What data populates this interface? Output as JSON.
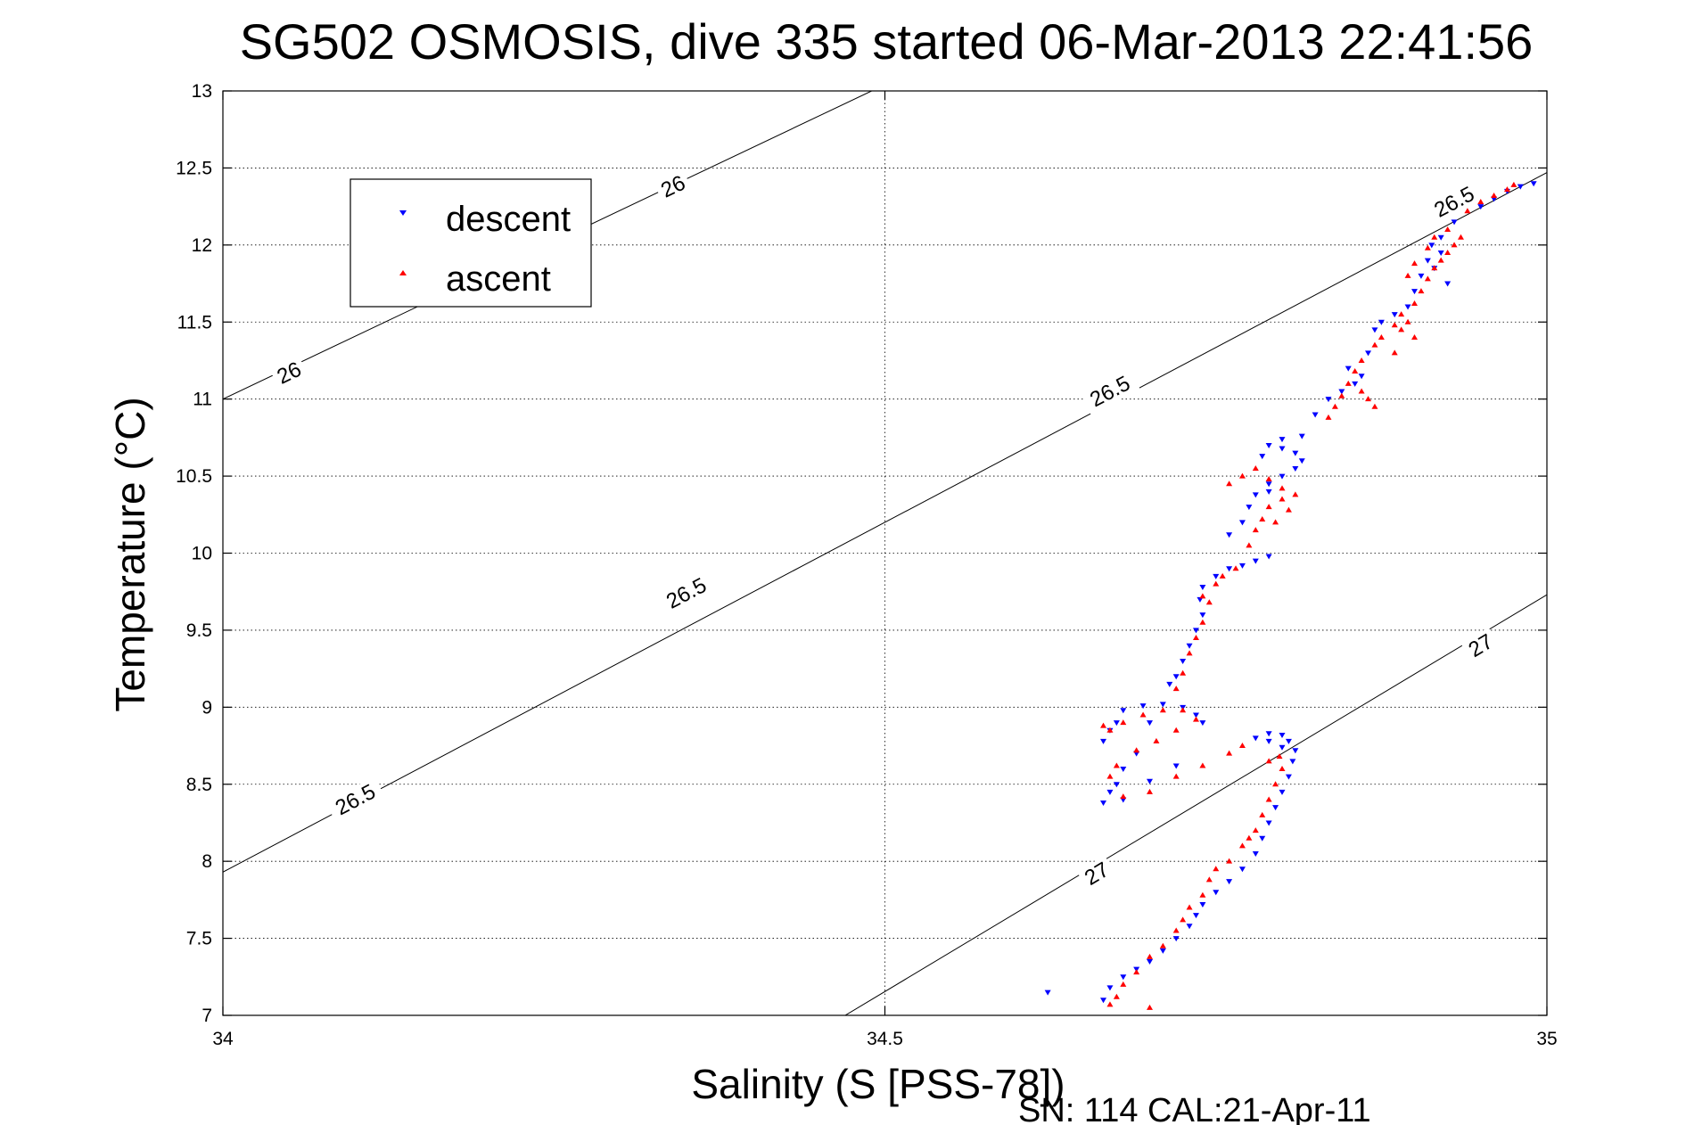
{
  "chart_data": {
    "type": "scatter",
    "title": "SG502 OSMOSIS, dive 335 started 06-Mar-2013 22:41:56",
    "xlabel": "Salinity (S [PSS-78])",
    "ylabel": "Temperature (°C)",
    "footer": "SN: 114  CAL:21-Apr-11",
    "xlim": [
      34,
      35
    ],
    "ylim": [
      7,
      13
    ],
    "x_ticks": [
      34,
      34.5,
      35
    ],
    "x_tick_labels": [
      "34",
      "34.5",
      "35"
    ],
    "y_ticks": [
      7,
      7.5,
      8,
      8.5,
      9,
      9.5,
      10,
      10.5,
      11,
      11.5,
      12,
      12.5,
      13
    ],
    "y_tick_labels": [
      "7",
      "7.5",
      "8",
      "8.5",
      "9",
      "9.5",
      "10",
      "10.5",
      "11",
      "11.5",
      "12",
      "12.5",
      "13"
    ],
    "grid": true,
    "legend_position": "top-left",
    "isopycnals": [
      {
        "label": "26",
        "points": [
          [
            34.0,
            11.0
          ],
          [
            34.49,
            13.0
          ]
        ],
        "label_at": [
          [
            34.05,
            11.17
          ],
          [
            34.34,
            12.38
          ]
        ]
      },
      {
        "label": "26.5",
        "points": [
          [
            34.0,
            7.93
          ],
          [
            35.0,
            12.47
          ]
        ],
        "label_at": [
          [
            34.1,
            8.4
          ],
          [
            34.35,
            9.74
          ],
          [
            34.67,
            11.05
          ],
          [
            34.93,
            12.28
          ]
        ]
      },
      {
        "label": "27",
        "points": [
          [
            34.47,
            7.0
          ],
          [
            35.0,
            9.73
          ]
        ],
        "label_at": [
          [
            34.66,
            7.92
          ],
          [
            34.95,
            9.4
          ]
        ]
      }
    ],
    "series": [
      {
        "name": "descent",
        "color": "#0000ff",
        "marker": "triangle-down",
        "points": [
          [
            34.623,
            7.15
          ],
          [
            34.665,
            7.1
          ],
          [
            34.67,
            7.18
          ],
          [
            34.68,
            7.25
          ],
          [
            34.69,
            7.3
          ],
          [
            34.7,
            7.35
          ],
          [
            34.71,
            7.42
          ],
          [
            34.72,
            7.5
          ],
          [
            34.73,
            7.58
          ],
          [
            34.735,
            7.65
          ],
          [
            34.74,
            7.72
          ],
          [
            34.75,
            7.8
          ],
          [
            34.76,
            7.87
          ],
          [
            34.77,
            7.95
          ],
          [
            34.78,
            8.05
          ],
          [
            34.785,
            8.15
          ],
          [
            34.79,
            8.25
          ],
          [
            34.795,
            8.35
          ],
          [
            34.8,
            8.45
          ],
          [
            34.805,
            8.55
          ],
          [
            34.808,
            8.65
          ],
          [
            34.81,
            8.72
          ],
          [
            34.805,
            8.78
          ],
          [
            34.8,
            8.82
          ],
          [
            34.79,
            8.83
          ],
          [
            34.78,
            8.8
          ],
          [
            34.79,
            8.78
          ],
          [
            34.8,
            8.74
          ],
          [
            34.735,
            8.95
          ],
          [
            34.74,
            8.9
          ],
          [
            34.725,
            9.0
          ],
          [
            34.71,
            9.02
          ],
          [
            34.695,
            9.01
          ],
          [
            34.68,
            8.98
          ],
          [
            34.675,
            8.9
          ],
          [
            34.67,
            8.85
          ],
          [
            34.665,
            8.78
          ],
          [
            34.7,
            8.9
          ],
          [
            34.69,
            8.7
          ],
          [
            34.68,
            8.6
          ],
          [
            34.675,
            8.5
          ],
          [
            34.67,
            8.45
          ],
          [
            34.665,
            8.38
          ],
          [
            34.68,
            8.4
          ],
          [
            34.7,
            8.52
          ],
          [
            34.72,
            8.62
          ],
          [
            34.715,
            9.15
          ],
          [
            34.72,
            9.2
          ],
          [
            34.725,
            9.3
          ],
          [
            34.73,
            9.4
          ],
          [
            34.735,
            9.5
          ],
          [
            34.74,
            9.6
          ],
          [
            34.738,
            9.7
          ],
          [
            34.74,
            9.78
          ],
          [
            34.75,
            9.85
          ],
          [
            34.76,
            9.9
          ],
          [
            34.77,
            9.92
          ],
          [
            34.78,
            9.95
          ],
          [
            34.79,
            9.98
          ],
          [
            34.76,
            10.12
          ],
          [
            34.77,
            10.2
          ],
          [
            34.775,
            10.3
          ],
          [
            34.78,
            10.38
          ],
          [
            34.79,
            10.45
          ],
          [
            34.8,
            10.5
          ],
          [
            34.81,
            10.55
          ],
          [
            34.815,
            10.6
          ],
          [
            34.81,
            10.65
          ],
          [
            34.8,
            10.68
          ],
          [
            34.79,
            10.7
          ],
          [
            34.8,
            10.74
          ],
          [
            34.815,
            10.76
          ],
          [
            34.785,
            10.63
          ],
          [
            34.79,
            10.4
          ],
          [
            34.825,
            10.9
          ],
          [
            34.835,
            11.0
          ],
          [
            34.845,
            11.05
          ],
          [
            34.855,
            11.1
          ],
          [
            34.86,
            11.15
          ],
          [
            34.85,
            11.2
          ],
          [
            34.865,
            11.3
          ],
          [
            34.87,
            11.45
          ],
          [
            34.875,
            11.5
          ],
          [
            34.885,
            11.55
          ],
          [
            34.895,
            11.6
          ],
          [
            34.9,
            11.7
          ],
          [
            34.905,
            11.8
          ],
          [
            34.91,
            11.9
          ],
          [
            34.913,
            12.0
          ],
          [
            34.92,
            11.95
          ],
          [
            34.915,
            11.85
          ],
          [
            34.925,
            11.75
          ],
          [
            34.92,
            12.05
          ],
          [
            34.93,
            12.15
          ],
          [
            34.95,
            12.25
          ],
          [
            34.96,
            12.3
          ],
          [
            34.97,
            12.35
          ],
          [
            34.98,
            12.38
          ],
          [
            34.99,
            12.4
          ]
        ]
      },
      {
        "name": "ascent",
        "color": "#ff0000",
        "marker": "triangle-up",
        "points": [
          [
            34.67,
            7.07
          ],
          [
            34.675,
            7.12
          ],
          [
            34.68,
            7.2
          ],
          [
            34.69,
            7.28
          ],
          [
            34.7,
            7.38
          ],
          [
            34.71,
            7.45
          ],
          [
            34.72,
            7.55
          ],
          [
            34.725,
            7.62
          ],
          [
            34.73,
            7.7
          ],
          [
            34.74,
            7.78
          ],
          [
            34.745,
            7.88
          ],
          [
            34.75,
            7.95
          ],
          [
            34.76,
            8.0
          ],
          [
            34.77,
            8.1
          ],
          [
            34.775,
            8.15
          ],
          [
            34.78,
            8.2
          ],
          [
            34.785,
            8.3
          ],
          [
            34.79,
            8.4
          ],
          [
            34.795,
            8.5
          ],
          [
            34.8,
            8.6
          ],
          [
            34.798,
            8.68
          ],
          [
            34.79,
            8.65
          ],
          [
            34.7,
            7.05
          ],
          [
            34.665,
            8.88
          ],
          [
            34.67,
            8.85
          ],
          [
            34.68,
            8.9
          ],
          [
            34.695,
            8.95
          ],
          [
            34.71,
            8.98
          ],
          [
            34.725,
            8.98
          ],
          [
            34.735,
            8.92
          ],
          [
            34.72,
            8.85
          ],
          [
            34.705,
            8.78
          ],
          [
            34.69,
            8.72
          ],
          [
            34.675,
            8.62
          ],
          [
            34.67,
            8.55
          ],
          [
            34.68,
            8.42
          ],
          [
            34.7,
            8.45
          ],
          [
            34.72,
            8.55
          ],
          [
            34.74,
            8.62
          ],
          [
            34.76,
            8.7
          ],
          [
            34.77,
            8.75
          ],
          [
            34.72,
            9.12
          ],
          [
            34.725,
            9.22
          ],
          [
            34.73,
            9.35
          ],
          [
            34.735,
            9.45
          ],
          [
            34.74,
            9.55
          ],
          [
            34.745,
            9.68
          ],
          [
            34.75,
            9.8
          ],
          [
            34.755,
            9.85
          ],
          [
            34.765,
            9.9
          ],
          [
            34.74,
            9.72
          ],
          [
            34.775,
            10.05
          ],
          [
            34.78,
            10.15
          ],
          [
            34.785,
            10.22
          ],
          [
            34.79,
            10.3
          ],
          [
            34.8,
            10.35
          ],
          [
            34.805,
            10.28
          ],
          [
            34.795,
            10.2
          ],
          [
            34.76,
            10.45
          ],
          [
            34.77,
            10.5
          ],
          [
            34.78,
            10.55
          ],
          [
            34.79,
            10.48
          ],
          [
            34.8,
            10.42
          ],
          [
            34.81,
            10.38
          ],
          [
            34.835,
            10.88
          ],
          [
            34.84,
            10.95
          ],
          [
            34.845,
            11.02
          ],
          [
            34.85,
            11.1
          ],
          [
            34.855,
            11.18
          ],
          [
            34.86,
            11.05
          ],
          [
            34.865,
            11.0
          ],
          [
            34.87,
            10.95
          ],
          [
            34.86,
            11.25
          ],
          [
            34.87,
            11.35
          ],
          [
            34.875,
            11.4
          ],
          [
            34.885,
            11.48
          ],
          [
            34.89,
            11.55
          ],
          [
            34.9,
            11.62
          ],
          [
            34.905,
            11.7
          ],
          [
            34.91,
            11.78
          ],
          [
            34.915,
            11.85
          ],
          [
            34.92,
            11.9
          ],
          [
            34.925,
            11.95
          ],
          [
            34.93,
            12.0
          ],
          [
            34.935,
            12.05
          ],
          [
            34.925,
            12.1
          ],
          [
            34.915,
            12.05
          ],
          [
            34.91,
            11.98
          ],
          [
            34.9,
            11.88
          ],
          [
            34.895,
            11.8
          ],
          [
            34.89,
            11.45
          ],
          [
            34.895,
            11.5
          ],
          [
            34.9,
            11.4
          ],
          [
            34.885,
            11.3
          ],
          [
            34.94,
            12.22
          ],
          [
            34.95,
            12.28
          ],
          [
            34.96,
            12.32
          ],
          [
            34.97,
            12.36
          ],
          [
            34.975,
            12.39
          ]
        ]
      }
    ]
  }
}
